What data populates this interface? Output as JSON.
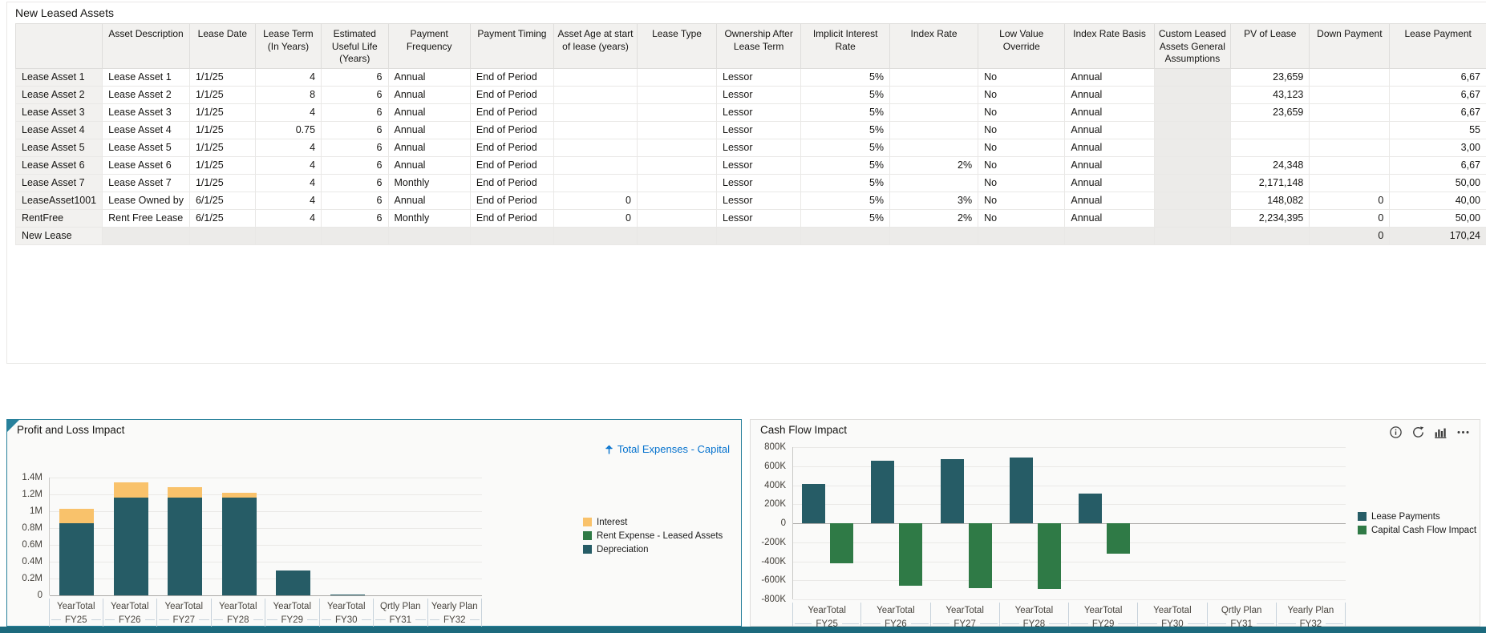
{
  "lease_form": {
    "title": "New Leased Assets",
    "columns": [
      "",
      "Asset Description",
      "Lease Date",
      "Lease Term (In Years)",
      "Estimated Useful Life (Years)",
      "Payment Frequency",
      "Payment Timing",
      "Asset Age at start of lease (years)",
      "Lease Type",
      "Ownership After Lease Term",
      "Implicit Interest Rate",
      "Index Rate",
      "Low Value Override",
      "Index Rate Basis",
      "Custom Leased Assets General Assumptions",
      "PV of Lease",
      "Down Payment",
      "Lease Payment"
    ],
    "rows": [
      {
        "name": "Lease Asset 1",
        "readonly_row": false,
        "cells": [
          "Lease Asset 1",
          "1/1/25",
          "4",
          "6",
          "Annual",
          "End of Period",
          "",
          "",
          "Lessor",
          "5%",
          "",
          "No",
          "Annual",
          "",
          "23,659",
          "",
          "6,67"
        ]
      },
      {
        "name": "Lease Asset 2",
        "readonly_row": false,
        "cells": [
          "Lease Asset 2",
          "1/1/25",
          "8",
          "6",
          "Annual",
          "End of Period",
          "",
          "",
          "Lessor",
          "5%",
          "",
          "No",
          "Annual",
          "",
          "43,123",
          "",
          "6,67"
        ]
      },
      {
        "name": "Lease Asset 3",
        "readonly_row": false,
        "cells": [
          "Lease Asset 3",
          "1/1/25",
          "4",
          "6",
          "Annual",
          "End of Period",
          "",
          "",
          "Lessor",
          "5%",
          "",
          "No",
          "Annual",
          "",
          "23,659",
          "",
          "6,67"
        ]
      },
      {
        "name": "Lease Asset 4",
        "readonly_row": false,
        "cells": [
          "Lease Asset 4",
          "1/1/25",
          "0.75",
          "6",
          "Annual",
          "End of Period",
          "",
          "",
          "Lessor",
          "5%",
          "",
          "No",
          "Annual",
          "",
          "",
          "",
          "55"
        ]
      },
      {
        "name": "Lease Asset 5",
        "readonly_row": false,
        "cells": [
          "Lease Asset 5",
          "1/1/25",
          "4",
          "6",
          "Annual",
          "End of Period",
          "",
          "",
          "Lessor",
          "5%",
          "",
          "No",
          "Annual",
          "",
          "",
          "",
          "3,00"
        ]
      },
      {
        "name": "Lease Asset 6",
        "readonly_row": false,
        "cells": [
          "Lease Asset 6",
          "1/1/25",
          "4",
          "6",
          "Annual",
          "End of Period",
          "",
          "",
          "Lessor",
          "5%",
          "2%",
          "No",
          "Annual",
          "",
          "24,348",
          "",
          "6,67"
        ]
      },
      {
        "name": "Lease Asset 7",
        "readonly_row": false,
        "cells": [
          "Lease Asset 7",
          "1/1/25",
          "4",
          "6",
          "Monthly",
          "End of Period",
          "",
          "",
          "Lessor",
          "5%",
          "",
          "No",
          "Annual",
          "",
          "2,171,148",
          "",
          "50,00"
        ]
      },
      {
        "name": "LeaseAsset1001",
        "readonly_row": false,
        "cells": [
          "Lease Owned by",
          "6/1/25",
          "4",
          "6",
          "Annual",
          "End of Period",
          "0",
          "",
          "Lessor",
          "5%",
          "3%",
          "No",
          "Annual",
          "",
          "148,082",
          "0",
          "40,00"
        ]
      },
      {
        "name": "RentFree",
        "readonly_row": false,
        "cells": [
          "Rent Free Lease",
          "6/1/25",
          "4",
          "6",
          "Monthly",
          "End of Period",
          "0",
          "",
          "Lessor",
          "5%",
          "2%",
          "No",
          "Annual",
          "",
          "2,234,395",
          "0",
          "50,00"
        ]
      },
      {
        "name": "New Lease",
        "readonly_row": true,
        "cells": [
          "",
          "",
          "",
          "",
          "",
          "",
          "",
          "",
          "",
          "",
          "",
          "",
          "",
          "",
          "",
          "0",
          "170,24"
        ]
      }
    ]
  },
  "pnl_panel": {
    "title": "Profit and Loss Impact",
    "link_label": "Total Expenses - Capital",
    "link_color": "#0572CE",
    "selected_border": "#27809B"
  },
  "cashflow_panel": {
    "title": "Cash Flow Impact",
    "icons": [
      "info-icon",
      "refresh-icon",
      "bar-chart-icon",
      "more-icon"
    ]
  },
  "footer_color": "#1C6A7D",
  "chart_data": [
    {
      "id": "profit-and-loss-impact",
      "type": "bar",
      "stacked": true,
      "title": "Profit and Loss Impact",
      "categories": [
        "YearTotal FY25",
        "YearTotal FY26",
        "YearTotal FY27",
        "YearTotal FY28",
        "YearTotal FY29",
        "YearTotal FY30",
        "Qrtly Plan FY31",
        "Yearly Plan FY32"
      ],
      "categories_line1": [
        "YearTotal",
        "YearTotal",
        "YearTotal",
        "YearTotal",
        "YearTotal",
        "YearTotal",
        "Qrtly Plan",
        "Yearly Plan"
      ],
      "categories_line2": [
        "FY25",
        "FY26",
        "FY27",
        "FY28",
        "FY29",
        "FY30",
        "FY31",
        "FY32"
      ],
      "series": [
        {
          "name": "Interest",
          "color": "#F9C26B",
          "values": [
            170000,
            180000,
            130000,
            60000,
            0,
            0,
            0,
            0
          ]
        },
        {
          "name": "Rent Expense - Leased Assets",
          "color": "#2F7A46",
          "values": [
            0,
            0,
            0,
            0,
            0,
            0,
            0,
            0
          ]
        },
        {
          "name": "Depreciation",
          "color": "#265C66",
          "values": [
            860000,
            1160000,
            1160000,
            1160000,
            300000,
            12000,
            0,
            0
          ]
        }
      ],
      "ylim": [
        0,
        1400000
      ],
      "ytick_values": [
        1400000,
        1200000,
        1000000,
        800000,
        600000,
        400000,
        200000,
        0
      ],
      "ytick_labels": [
        "1.4M",
        "1.2M",
        "1M",
        "0.8M",
        "0.6M",
        "0.4M",
        "0.2M",
        "0"
      ],
      "grid": true,
      "legend_position": "right"
    },
    {
      "id": "cash-flow-impact",
      "type": "bar",
      "stacked": false,
      "title": "Cash Flow Impact",
      "categories": [
        "YearTotal FY25",
        "YearTotal FY26",
        "YearTotal FY27",
        "YearTotal FY28",
        "YearTotal FY29",
        "YearTotal FY30",
        "Qrtly Plan FY31",
        "Yearly Plan FY32"
      ],
      "categories_line1": [
        "YearTotal",
        "YearTotal",
        "YearTotal",
        "YearTotal",
        "YearTotal",
        "YearTotal",
        "Qrtly Plan",
        "Yearly Plan"
      ],
      "categories_line2": [
        "FY25",
        "FY26",
        "FY27",
        "FY28",
        "FY29",
        "FY30",
        "FY31",
        "FY32"
      ],
      "series": [
        {
          "name": "Lease Payments",
          "color": "#265C66",
          "values": [
            410000,
            660000,
            670000,
            690000,
            310000,
            0,
            0,
            0
          ]
        },
        {
          "name": "Capital Cash Flow Impact",
          "color": "#2F7A46",
          "values": [
            -420000,
            -660000,
            -680000,
            -690000,
            -320000,
            0,
            0,
            0
          ]
        }
      ],
      "ylim": [
        -800000,
        800000
      ],
      "ytick_values": [
        800000,
        600000,
        400000,
        200000,
        0,
        -200000,
        -400000,
        -600000,
        -800000
      ],
      "ytick_labels": [
        "800K",
        "600K",
        "400K",
        "200K",
        "0",
        "-200K",
        "-400K",
        "-600K",
        "-800K"
      ],
      "grid": true,
      "legend_position": "right"
    }
  ]
}
